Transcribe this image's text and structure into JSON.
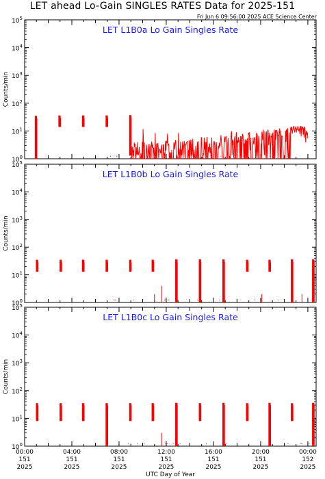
{
  "header": {
    "title": "LET ahead Lo-Gain SINGLES RATES Data for 2025-151",
    "timestamp": "Fri Jun  6 09:56:00 2025 ACE Science Center"
  },
  "colors": {
    "panel_title": "#1a1aff",
    "data": "#ff0000",
    "axes": "#000000"
  },
  "chart_data": {
    "type": "line",
    "xlabel": "UTC Day of Year",
    "ylabel": "Counts/min",
    "y_scale": "log",
    "ylim": [
      1,
      100000
    ],
    "y_ticks": [
      {
        "value": 1,
        "label": "10^0"
      },
      {
        "value": 10,
        "label": "10^1"
      },
      {
        "value": 100,
        "label": "10^2"
      },
      {
        "value": 1000,
        "label": "10^3"
      },
      {
        "value": 10000,
        "label": "10^4"
      },
      {
        "value": 100000,
        "label": "10^5"
      }
    ],
    "xlim": [
      "2025-151 00:00",
      "2025-152 00:00"
    ],
    "x_ticks": [
      {
        "time": "00:00",
        "doy": "151",
        "year": "2025"
      },
      {
        "time": "04:00",
        "doy": "151",
        "year": "2025"
      },
      {
        "time": "08:00",
        "doy": "151",
        "year": "2025"
      },
      {
        "time": "12:00",
        "doy": "151",
        "year": "2025"
      },
      {
        "time": "16:00",
        "doy": "151",
        "year": "2025"
      },
      {
        "time": "20:00",
        "doy": "151",
        "year": "2025"
      },
      {
        "time": "00:00",
        "doy": "152",
        "year": "2025"
      }
    ],
    "panels": [
      {
        "title": "LET L1B0a Lo Gain Singles Rate",
        "pulses": [
          {
            "hour": 0.9,
            "low": 1,
            "high": 35
          },
          {
            "hour": 2.9,
            "low": 14,
            "high": 36
          },
          {
            "hour": 4.9,
            "low": 14,
            "high": 36
          },
          {
            "hour": 6.9,
            "low": 14,
            "high": 36
          },
          {
            "hour": 8.9,
            "low": 1.3,
            "high": 37
          }
        ],
        "noise": {
          "start_hour": 9.0,
          "end_hour": 24.0,
          "base": 1.0,
          "typical": 3,
          "max": 8,
          "end_level": 15
        }
      },
      {
        "title": "LET L1B0b Lo Gain Singles Rate",
        "pulses": [
          {
            "hour": 1.0,
            "low": 13,
            "high": 35
          },
          {
            "hour": 3.0,
            "low": 13,
            "high": 35
          },
          {
            "hour": 4.9,
            "low": 13,
            "high": 35
          },
          {
            "hour": 6.9,
            "low": 13,
            "high": 35
          },
          {
            "hour": 8.9,
            "low": 13,
            "high": 35
          },
          {
            "hour": 10.8,
            "low": 13,
            "high": 35
          },
          {
            "hour": 12.8,
            "low": 1,
            "high": 36
          },
          {
            "hour": 14.8,
            "low": 1,
            "high": 36
          },
          {
            "hour": 16.8,
            "low": 1,
            "high": 36
          },
          {
            "hour": 18.8,
            "low": 13,
            "high": 35
          },
          {
            "hour": 20.7,
            "low": 13,
            "high": 35
          },
          {
            "hour": 22.6,
            "low": 1,
            "high": 36
          },
          {
            "hour": 24.4,
            "low": 1,
            "high": 36
          }
        ],
        "spikes": [
          {
            "hour": 11.0,
            "value": 2
          },
          {
            "hour": 11.6,
            "value": 4
          },
          {
            "hour": 20.1,
            "value": 2
          },
          {
            "hour": 23.5,
            "value": 2
          },
          {
            "hour": 24.5,
            "value": 3
          }
        ]
      },
      {
        "title": "LET L1B0c Lo Gain Singles Rate",
        "pulses": [
          {
            "hour": 1.0,
            "low": 8,
            "high": 35
          },
          {
            "hour": 3.0,
            "low": 8,
            "high": 35
          },
          {
            "hour": 4.9,
            "low": 8,
            "high": 35
          },
          {
            "hour": 6.9,
            "low": 1,
            "high": 35
          },
          {
            "hour": 8.9,
            "low": 8,
            "high": 35
          },
          {
            "hour": 10.8,
            "low": 8,
            "high": 35
          },
          {
            "hour": 12.8,
            "low": 1,
            "high": 36
          },
          {
            "hour": 14.8,
            "low": 8,
            "high": 35
          },
          {
            "hour": 16.8,
            "low": 1,
            "high": 36
          },
          {
            "hour": 18.8,
            "low": 8,
            "high": 35
          },
          {
            "hour": 20.7,
            "low": 1,
            "high": 36
          },
          {
            "hour": 22.6,
            "low": 8,
            "high": 35
          },
          {
            "hour": 24.4,
            "low": 1,
            "high": 36
          }
        ],
        "spikes": [
          {
            "hour": 11.6,
            "value": 3
          },
          {
            "hour": 24.5,
            "value": 3
          }
        ]
      }
    ]
  }
}
